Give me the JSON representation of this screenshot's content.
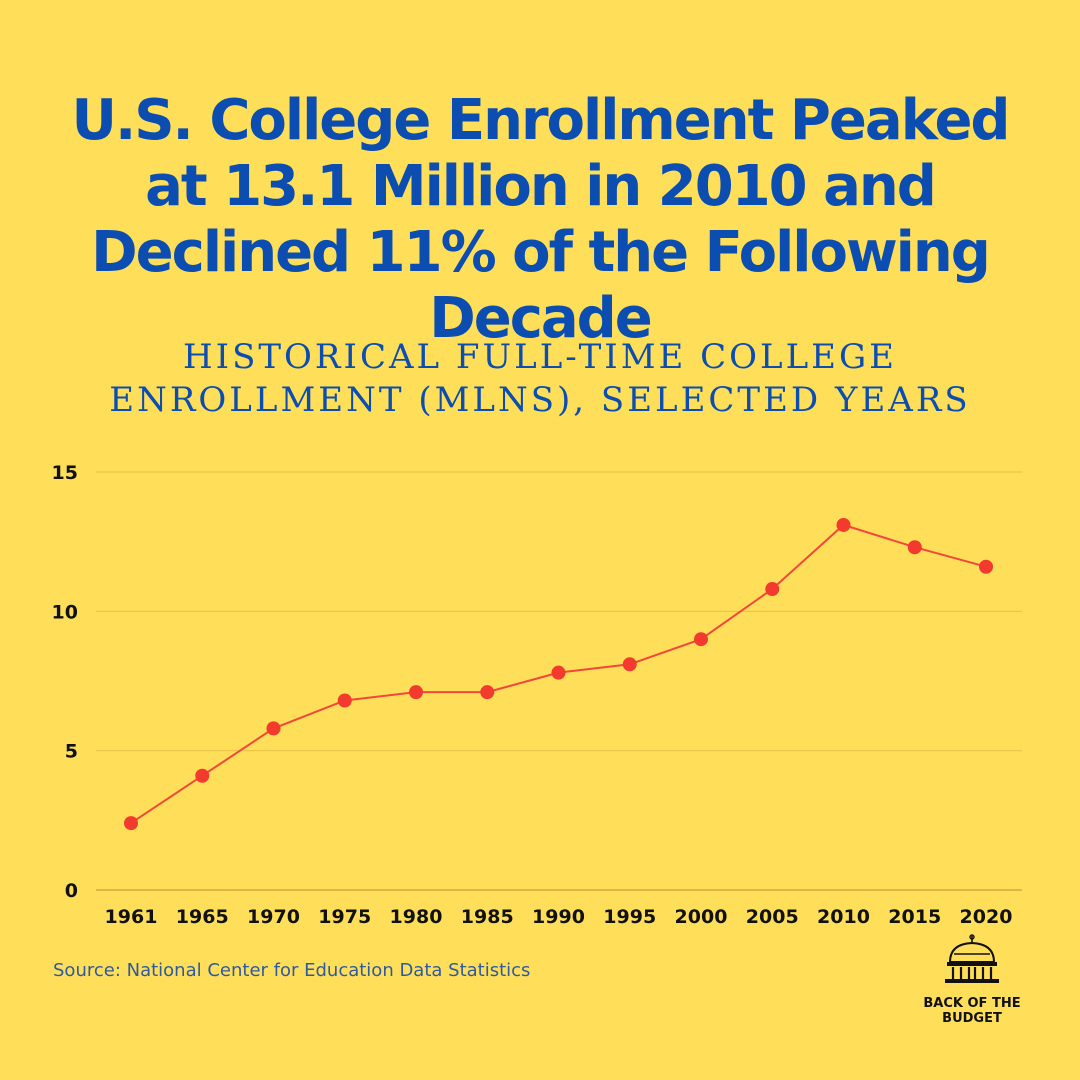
{
  "headline": "U.S. College Enrollment Peaked at 13.1 Million in 2010 and Declined 11% of the Following Decade",
  "source": "Source: National Center for Education Data Statistics",
  "brand": {
    "name": "Back of the Budget",
    "line1": "BACK OF THE",
    "line2": "BUDGET",
    "icon": "capitol-dome-icon"
  },
  "colors": {
    "background": "#FFDE59",
    "headline": "#0B4DB0",
    "line": "#F2473B",
    "marker": "#F23A2E",
    "gridline": "#E9C24A"
  },
  "chart_data": {
    "type": "line",
    "title": "HISTORICAL FULL-TIME COLLEGE ENROLLMENT (MLNS), SELECTED YEARS",
    "xlabel": "",
    "ylabel": "",
    "categories": [
      "1961",
      "1965",
      "1970",
      "1975",
      "1980",
      "1985",
      "1990",
      "1995",
      "2000",
      "2005",
      "2010",
      "2015",
      "2020"
    ],
    "series": [
      {
        "values": [
          2.4,
          4.1,
          5.8,
          6.8,
          7.1,
          7.1,
          7.8,
          8.1,
          9.0,
          10.8,
          13.1,
          12.3,
          11.6
        ]
      }
    ],
    "ylim": [
      0,
      15
    ],
    "yticks": [
      0,
      5,
      10,
      15
    ],
    "grid": true,
    "legend": "none"
  }
}
